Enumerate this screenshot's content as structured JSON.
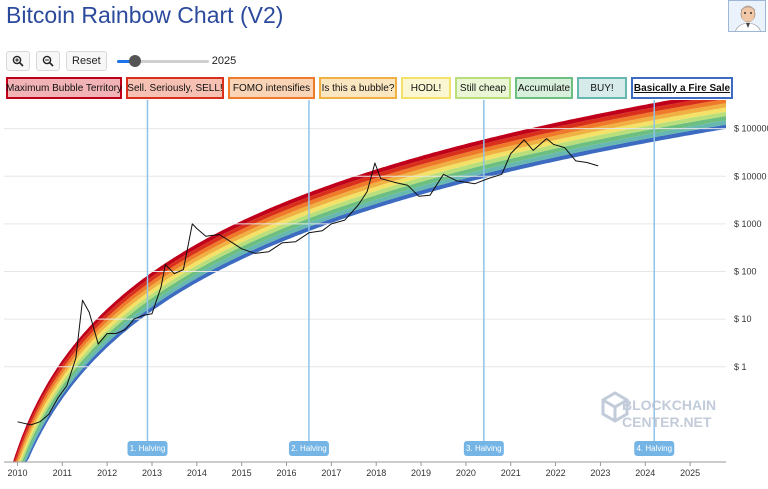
{
  "page": {
    "title": "Bitcoin Rainbow Chart (V2)"
  },
  "toolbar": {
    "zoom_in_icon": "zoom-in-icon",
    "zoom_out_icon": "zoom-out-icon",
    "reset_label": "Reset",
    "slider_value": "2025",
    "slider_fraction": 0.2
  },
  "legend": [
    {
      "label": "Maximum Bubble Territory",
      "color": "#c0001a",
      "bg": "#f2b3b7",
      "active": false
    },
    {
      "label": "Sell. Seriously, SELL!",
      "color": "#d9301c",
      "bg": "#f6c1b3",
      "active": false
    },
    {
      "label": "FOMO intensifies",
      "color": "#ee7a2a",
      "bg": "#f9d4b6",
      "active": false
    },
    {
      "label": "Is this a bubble?",
      "color": "#f0b142",
      "bg": "#fbe6c2",
      "active": false
    },
    {
      "label": "HODL!",
      "color": "#f3e267",
      "bg": "#fcf7d3",
      "active": false
    },
    {
      "label": "Still cheap",
      "color": "#b8df7c",
      "bg": "#eaf6d6",
      "active": false
    },
    {
      "label": "Accumulate",
      "color": "#6cbf80",
      "bg": "#d8efdc",
      "active": false
    },
    {
      "label": "BUY!",
      "color": "#66b8b0",
      "bg": "#d7ecea",
      "active": false
    },
    {
      "label": "Basically a Fire Sale",
      "color": "#3d6bc1",
      "bg": "#ffffff",
      "active": true
    }
  ],
  "chart_data": {
    "type": "line",
    "title": "Bitcoin Rainbow Chart (V2)",
    "y_scale": "log",
    "ylim": [
      0.01,
      400000
    ],
    "xlim": [
      2009.7,
      2025.8
    ],
    "y_ticks": [
      {
        "value": 1,
        "label": "$ 1"
      },
      {
        "value": 10,
        "label": "$ 10"
      },
      {
        "value": 100,
        "label": "$ 100"
      },
      {
        "value": 1000,
        "label": "$ 1000"
      },
      {
        "value": 10000,
        "label": "$ 10000"
      },
      {
        "value": 100000,
        "label": "$ 100000"
      }
    ],
    "x_ticks": [
      "2010",
      "2011",
      "2012",
      "2013",
      "2014",
      "2015",
      "2016",
      "2017",
      "2018",
      "2019",
      "2020",
      "2021",
      "2022",
      "2023",
      "2024",
      "2025"
    ],
    "halvings": [
      {
        "label": "1. Halving",
        "x": 2012.9
      },
      {
        "label": "2. Halving",
        "x": 2016.5
      },
      {
        "label": "3. Halving",
        "x": 2020.4
      },
      {
        "label": "4. Halving",
        "x": 2024.2
      }
    ],
    "bands": [
      {
        "name": "Basically a Fire Sale",
        "color": "#3d6bc1"
      },
      {
        "name": "BUY!",
        "color": "#66b8b0"
      },
      {
        "name": "Accumulate",
        "color": "#6cbf80"
      },
      {
        "name": "Still cheap",
        "color": "#b8df7c"
      },
      {
        "name": "HODL!",
        "color": "#f3e267"
      },
      {
        "name": "Is this a bubble?",
        "color": "#f0b142"
      },
      {
        "name": "FOMO intensifies",
        "color": "#ee7a2a"
      },
      {
        "name": "Sell. Seriously, SELL!",
        "color": "#d9301c"
      },
      {
        "name": "Maximum Bubble Territory",
        "color": "#c0001a"
      }
    ],
    "price_series": {
      "name": "BTC price",
      "x": [
        2010.0,
        2010.3,
        2010.5,
        2010.7,
        2010.9,
        2011.1,
        2011.3,
        2011.45,
        2011.6,
        2011.8,
        2012.0,
        2012.2,
        2012.4,
        2012.6,
        2012.8,
        2013.0,
        2013.2,
        2013.3,
        2013.5,
        2013.7,
        2013.9,
        2014.0,
        2014.2,
        2014.5,
        2014.8,
        2015.0,
        2015.3,
        2015.6,
        2015.9,
        2016.2,
        2016.5,
        2016.8,
        2017.0,
        2017.3,
        2017.6,
        2017.8,
        2017.97,
        2018.1,
        2018.4,
        2018.7,
        2018.95,
        2019.2,
        2019.5,
        2019.8,
        2020.2,
        2020.5,
        2020.8,
        2021.0,
        2021.3,
        2021.5,
        2021.8,
        2021.95,
        2022.2,
        2022.45,
        2022.7,
        2022.95
      ],
      "y": [
        0.07,
        0.06,
        0.07,
        0.1,
        0.22,
        0.4,
        1.5,
        25,
        14,
        3,
        5,
        5,
        6,
        10,
        12,
        13,
        47,
        140,
        90,
        110,
        1000,
        800,
        550,
        600,
        400,
        300,
        240,
        260,
        400,
        420,
        650,
        720,
        1000,
        1200,
        2500,
        4800,
        19000,
        9000,
        7500,
        6500,
        3800,
        4000,
        11000,
        8000,
        7000,
        9000,
        11000,
        30000,
        58000,
        35000,
        62000,
        47000,
        40000,
        21000,
        19500,
        16500
      ]
    }
  }
}
